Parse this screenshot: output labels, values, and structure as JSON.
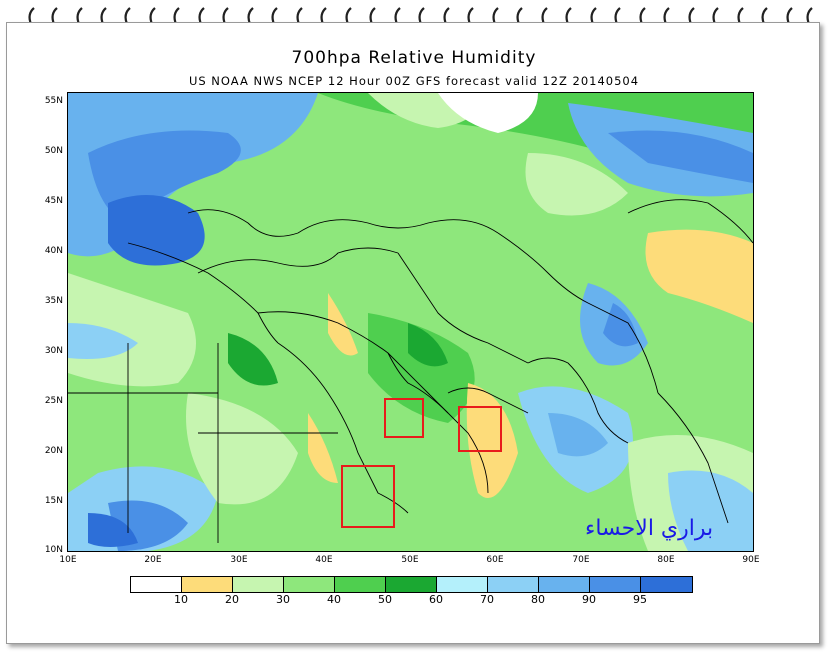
{
  "title": "700hpa Relative Humidity",
  "subtitle": "US NOAA NWS NCEP 12 Hour 00Z GFS forecast valid 12Z 20140504",
  "lat_ticks": [
    "55N",
    "50N",
    "45N",
    "40N",
    "35N",
    "30N",
    "25N",
    "20N",
    "15N",
    "10N"
  ],
  "lon_ticks": [
    "10E",
    "20E",
    "30E",
    "40E",
    "50E",
    "60E",
    "70E",
    "80E",
    "90E"
  ],
  "legend": {
    "colors": [
      "#ffffff",
      "#fddc7a",
      "#c6f5b0",
      "#8ee77c",
      "#4fcf4f",
      "#1ba832",
      "#b4f0fb",
      "#8cd0f5",
      "#68b2ee",
      "#4a90e6",
      "#2d6fd8"
    ],
    "labels": [
      "10",
      "20",
      "30",
      "40",
      "50",
      "60",
      "70",
      "80",
      "90",
      "95"
    ]
  },
  "watermark": "براري الاحساء",
  "highlight_boxes": [
    "central-saudi",
    "oman-coast",
    "yemen"
  ]
}
